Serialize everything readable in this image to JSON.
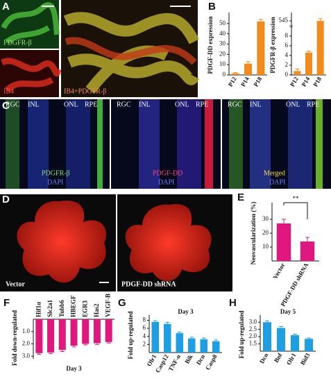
{
  "panels": {
    "letters": [
      "A",
      "B",
      "C",
      "D",
      "E",
      "F",
      "G",
      "H"
    ],
    "a_labels": [
      "PDGFR-β",
      "IB4",
      "IB4+PDGFR-β"
    ],
    "c_layers": [
      "RGC",
      "INL",
      "ONL",
      "RPE"
    ],
    "c_labels": [
      [
        "PDGFR-β",
        "DAPI"
      ],
      [
        "PDGF-DD",
        "DAPI"
      ],
      [
        "Merged",
        "DAPI"
      ]
    ],
    "d_labels": [
      "Vector",
      "PDGF-DD shRNA"
    ]
  },
  "chart_data": [
    {
      "type": "bar",
      "ylabel": "PDGF-DD expression",
      "categories": [
        "P12",
        "P14",
        "P18"
      ],
      "values": [
        1.5,
        11,
        52
      ],
      "errors": [
        0.8,
        2,
        2
      ],
      "color": "#f28a1c",
      "ylim": [
        0,
        58
      ],
      "yticks": [
        0,
        10,
        20,
        30,
        40,
        50
      ]
    },
    {
      "type": "bar",
      "ylabel": "PDGFR-β expression",
      "categories": [
        "P12",
        "P14",
        "P18"
      ],
      "values": [
        0.8,
        4.6,
        545
      ],
      "errors": [
        0.4,
        0.3,
        1.2
      ],
      "color": "#f28a1c",
      "ylim": [
        0,
        548
      ],
      "ybreak": [
        9,
        541
      ],
      "yticks": [
        0,
        2,
        4,
        6,
        8,
        545
      ]
    },
    {
      "type": "bar",
      "ylabel": "Neovascularization (%)",
      "categories": [
        "Vector",
        "PDGF-DD shRNA"
      ],
      "values": [
        27,
        14
      ],
      "errors": [
        3,
        3
      ],
      "color": "#e0177f",
      "ylim": [
        0,
        40
      ],
      "yticks": [
        10,
        20,
        30
      ],
      "annotation": "**"
    },
    {
      "type": "bar",
      "title": "Day 3",
      "ylabel": "Fold down-regulated",
      "inverted": true,
      "categories": [
        "Hif1α",
        "Slc2a1",
        "Tubb6",
        "HBEGF",
        "EGR3",
        "Has2",
        "VEGF-B"
      ],
      "values": [
        2.75,
        2.7,
        2.5,
        2.15,
        2.0,
        1.95,
        1.85
      ],
      "errors": [
        0.1,
        0.1,
        0.12,
        0.1,
        0.08,
        0.1,
        0.08
      ],
      "color": "#e0177f",
      "ylim": [
        0,
        3.1
      ],
      "yticks": [
        {
          "value": 1,
          "label": "1.0"
        },
        {
          "value": 2,
          "label": "2.0"
        },
        {
          "value": 3,
          "label": "3.0"
        }
      ]
    },
    {
      "type": "bar",
      "title": "Day 3",
      "ylabel": "Fold up-regulated",
      "categories": [
        "Olr1",
        "Casp12",
        "TNF-α",
        "Bik",
        "Dcn",
        "Casp8"
      ],
      "values": [
        7.6,
        7.1,
        4.8,
        3.5,
        3.3,
        2.8
      ],
      "errors": [
        0.3,
        0.4,
        0.3,
        0.3,
        0.3,
        0.3
      ],
      "color": "#1e9fe3",
      "ylim": [
        0,
        8.6
      ],
      "yticks": [
        2,
        4,
        6,
        8
      ]
    },
    {
      "type": "bar",
      "title": "Day 5",
      "ylabel": "Fold up-regulated",
      "categories": [
        "Dcn",
        "Bnf",
        "Olr1",
        "Bid3"
      ],
      "values": [
        3.0,
        2.6,
        2.1,
        1.85
      ],
      "errors": [
        0.1,
        0.1,
        0.08,
        0.06
      ],
      "color": "#1e9fe3",
      "ylim": [
        1.0,
        3.3
      ],
      "yticks": [
        {
          "value": 1.5,
          "label": "1.5"
        },
        {
          "value": 2,
          "label": "2.0"
        },
        {
          "value": 2.5,
          "label": "2.5"
        },
        {
          "value": 3,
          "label": "3.0"
        }
      ]
    }
  ]
}
